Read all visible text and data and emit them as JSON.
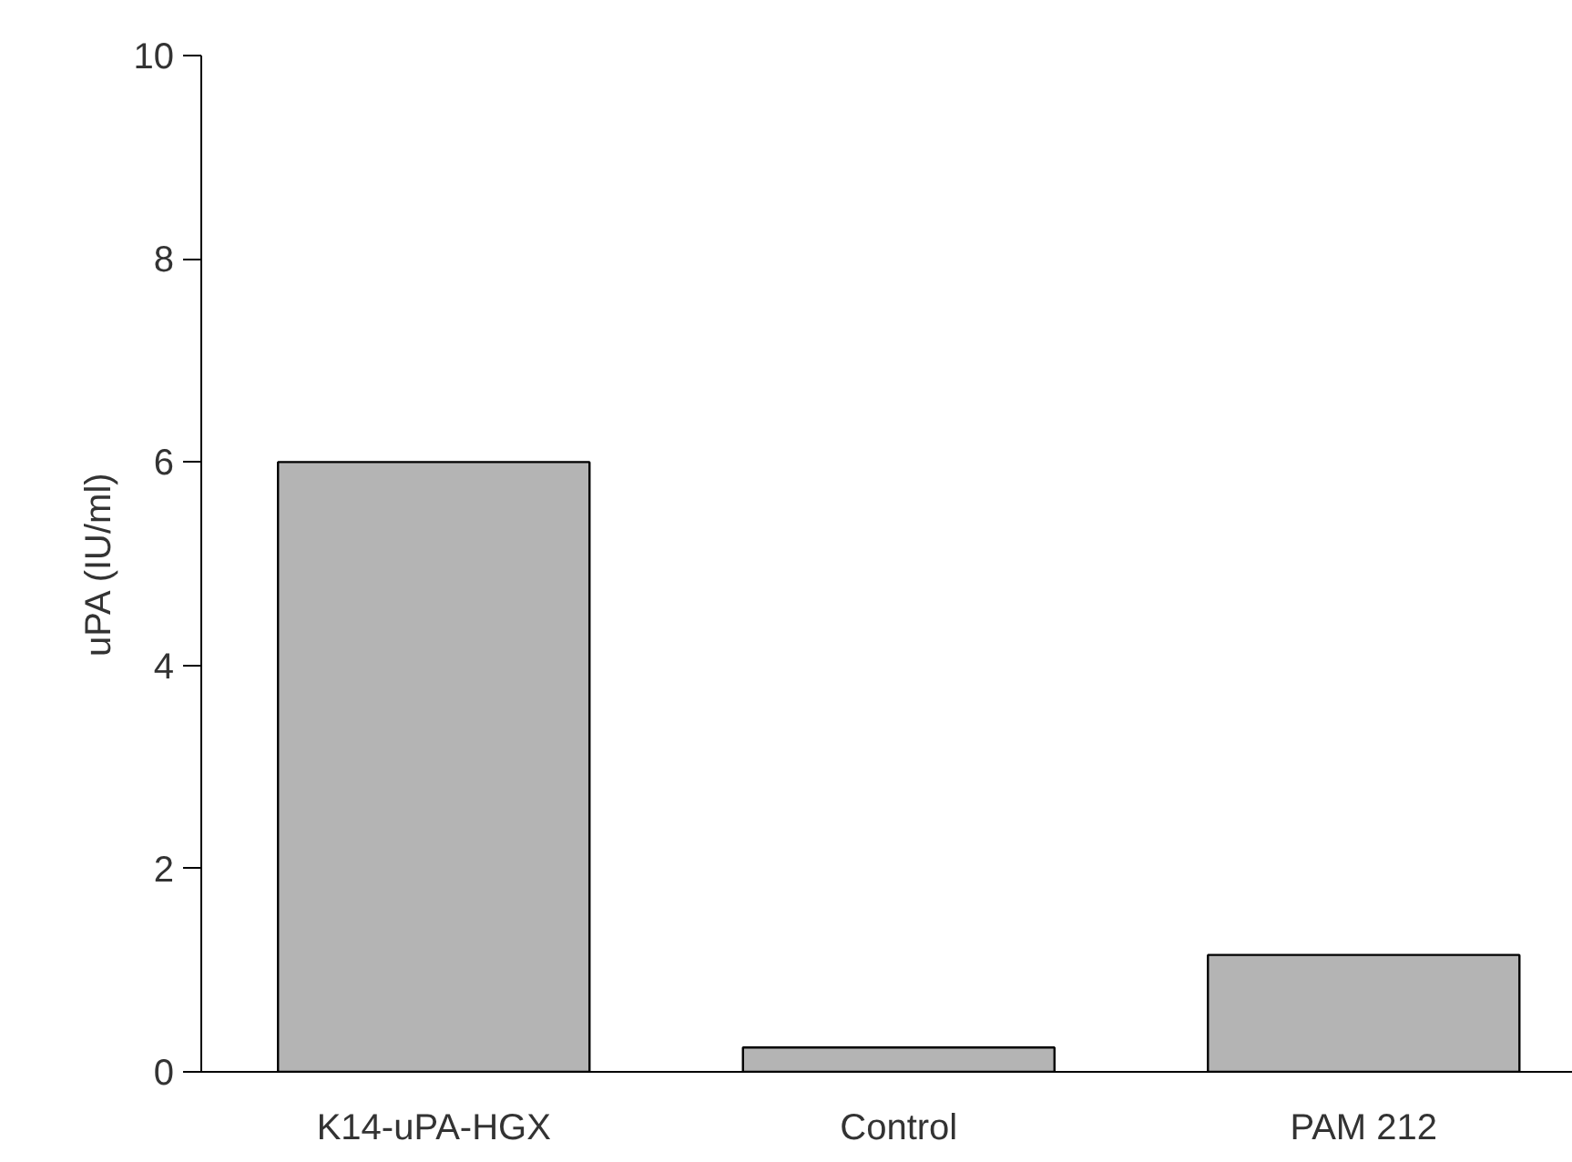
{
  "chart_data": {
    "type": "bar",
    "ylabel": "uPA (IU/ml)",
    "categories": [
      "K14-uPA-HGX",
      "Control",
      "PAM 212"
    ],
    "values": [
      6.0,
      0.24,
      1.15
    ],
    "color": "#b4b4b4",
    "ylim": [
      0,
      10
    ],
    "yticks": [
      0,
      2,
      4,
      6,
      8,
      10
    ],
    "grid": false
  }
}
